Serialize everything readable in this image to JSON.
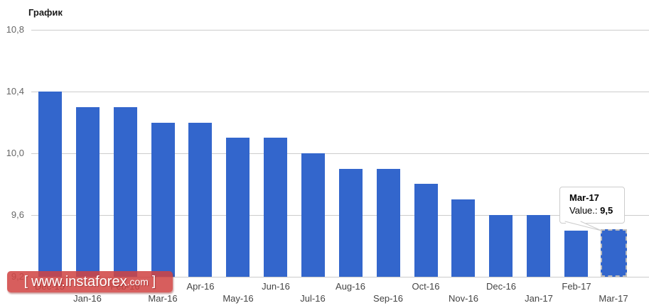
{
  "chart_data": {
    "type": "bar",
    "title": "График",
    "categories": [
      "Dec-15",
      "Jan-16",
      "Feb-16",
      "Mar-16",
      "Apr-16",
      "May-16",
      "Jun-16",
      "Jul-16",
      "Aug-16",
      "Sep-16",
      "Oct-16",
      "Nov-16",
      "Dec-16",
      "Jan-17",
      "Feb-17",
      "Mar-17"
    ],
    "values": [
      10.4,
      10.3,
      10.3,
      10.2,
      10.2,
      10.1,
      10.1,
      10.0,
      9.9,
      9.9,
      9.8,
      9.7,
      9.6,
      9.6,
      9.5,
      9.5
    ],
    "xlabel": "",
    "ylabel": "",
    "ylim": [
      9.2,
      10.8
    ],
    "yticks": [
      {
        "label": "10,8",
        "value": 10.8
      },
      {
        "label": "10,4",
        "value": 10.4
      },
      {
        "label": "10,0",
        "value": 10.0
      },
      {
        "label": "9,6",
        "value": 9.6
      },
      {
        "label": "9,2",
        "value": 9.2
      }
    ],
    "grid": true,
    "legend_position": "none",
    "bar_color": "#3366cc",
    "highlighted_index": 15,
    "highlighted_category": "Mar-17"
  },
  "tooltip": {
    "title": "Mar-17",
    "label": "Value.:",
    "value": "9,5"
  },
  "watermark": {
    "open_bracket": "[",
    "main": "www.instaforex",
    "suffix": ".com",
    "close_bracket": "]"
  },
  "colors": {
    "bar": "#3366cc",
    "grid": "#cccccc",
    "y_axis_text": "#666666",
    "x_axis_text": "#444444",
    "watermark_red": "#d04442",
    "highlight_outline": "#bdbdbd",
    "tooltip_border": "#cccccc"
  }
}
